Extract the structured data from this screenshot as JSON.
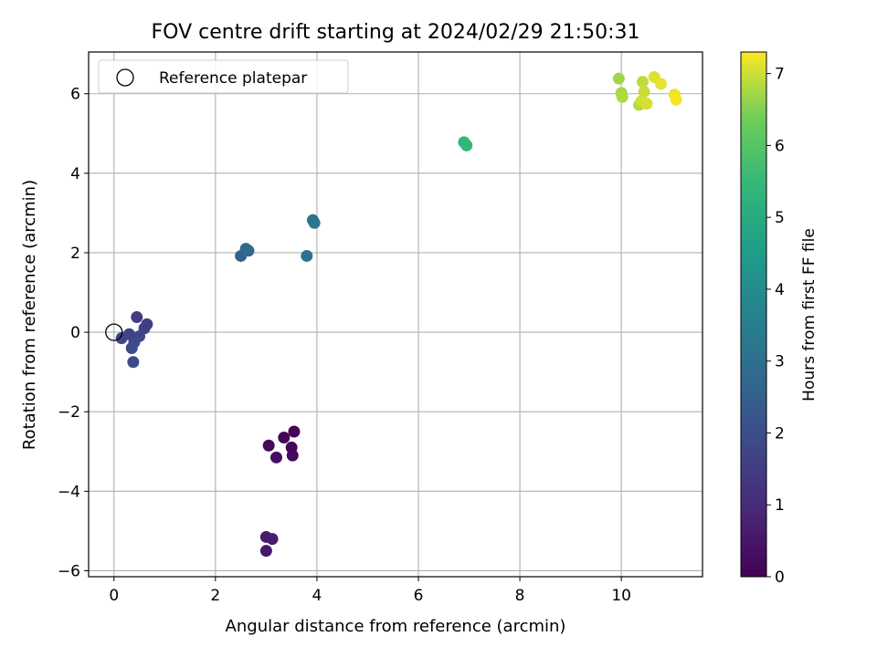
{
  "chart_data": {
    "type": "scatter",
    "title": "FOV centre drift starting at 2024/02/29 21:50:31",
    "xlabel": "Angular distance from reference (arcmin)",
    "ylabel": "Rotation from reference (arcmin)",
    "xlim": [
      -0.5,
      11.6
    ],
    "ylim": [
      -6.15,
      7.05
    ],
    "xticks": [
      0,
      2,
      4,
      6,
      8,
      10
    ],
    "yticks": [
      -6,
      -4,
      -2,
      0,
      2,
      4,
      6
    ],
    "xtick_labels": [
      "0",
      "2",
      "4",
      "6",
      "8",
      "10"
    ],
    "ytick_labels": [
      "−6",
      "−4",
      "−2",
      "0",
      "2",
      "4",
      "6"
    ],
    "grid": true,
    "legend": {
      "placement": "top-left",
      "entries": [
        {
          "label": "Reference platepar",
          "marker": "open-circle"
        }
      ]
    },
    "reference_point": {
      "x": 0,
      "y": 0
    },
    "colorbar": {
      "label": "Hours from first FF file",
      "colormap": "viridis",
      "min": 0,
      "max": 7.3,
      "ticks": [
        0,
        1,
        2,
        3,
        4,
        5,
        6,
        7
      ],
      "tick_labels": [
        "0",
        "1",
        "2",
        "3",
        "4",
        "5",
        "6",
        "7"
      ]
    },
    "points": [
      {
        "x": 3.55,
        "y": -2.5,
        "t": 0.05
      },
      {
        "x": 3.35,
        "y": -2.65,
        "t": 0.1
      },
      {
        "x": 3.5,
        "y": -2.9,
        "t": 0.15
      },
      {
        "x": 3.05,
        "y": -2.85,
        "t": 0.2
      },
      {
        "x": 3.52,
        "y": -3.1,
        "t": 0.25
      },
      {
        "x": 3.2,
        "y": -3.15,
        "t": 0.3
      },
      {
        "x": 3.0,
        "y": -5.5,
        "t": 0.55
      },
      {
        "x": 3.0,
        "y": -5.15,
        "t": 0.6
      },
      {
        "x": 3.12,
        "y": -5.2,
        "t": 0.65
      },
      {
        "x": 0.45,
        "y": 0.38,
        "t": 1.5
      },
      {
        "x": 0.65,
        "y": 0.2,
        "t": 1.55
      },
      {
        "x": 0.6,
        "y": 0.1,
        "t": 1.6
      },
      {
        "x": 0.15,
        "y": -0.15,
        "t": 1.65
      },
      {
        "x": 0.3,
        "y": -0.05,
        "t": 1.7
      },
      {
        "x": 0.5,
        "y": -0.1,
        "t": 1.75
      },
      {
        "x": 0.4,
        "y": -0.25,
        "t": 1.8
      },
      {
        "x": 0.35,
        "y": -0.4,
        "t": 1.85
      },
      {
        "x": 0.38,
        "y": -0.75,
        "t": 1.9
      },
      {
        "x": 2.5,
        "y": 1.92,
        "t": 2.6
      },
      {
        "x": 2.6,
        "y": 2.1,
        "t": 2.7
      },
      {
        "x": 2.65,
        "y": 2.05,
        "t": 2.75
      },
      {
        "x": 3.8,
        "y": 1.92,
        "t": 3.05
      },
      {
        "x": 3.92,
        "y": 2.82,
        "t": 3.15
      },
      {
        "x": 3.95,
        "y": 2.75,
        "t": 3.2
      },
      {
        "x": 6.9,
        "y": 4.78,
        "t": 5.4
      },
      {
        "x": 6.95,
        "y": 4.7,
        "t": 5.45
      },
      {
        "x": 9.95,
        "y": 6.38,
        "t": 6.7
      },
      {
        "x": 10.0,
        "y": 6.02,
        "t": 6.75
      },
      {
        "x": 10.02,
        "y": 5.92,
        "t": 6.8
      },
      {
        "x": 10.35,
        "y": 5.72,
        "t": 6.85
      },
      {
        "x": 10.42,
        "y": 6.3,
        "t": 6.9
      },
      {
        "x": 10.45,
        "y": 6.05,
        "t": 6.95
      },
      {
        "x": 10.4,
        "y": 5.82,
        "t": 7.0
      },
      {
        "x": 10.5,
        "y": 5.75,
        "t": 7.05
      },
      {
        "x": 10.65,
        "y": 6.42,
        "t": 7.1
      },
      {
        "x": 10.78,
        "y": 6.25,
        "t": 7.15
      },
      {
        "x": 11.05,
        "y": 5.98,
        "t": 7.2
      },
      {
        "x": 11.08,
        "y": 5.85,
        "t": 7.25
      }
    ]
  }
}
